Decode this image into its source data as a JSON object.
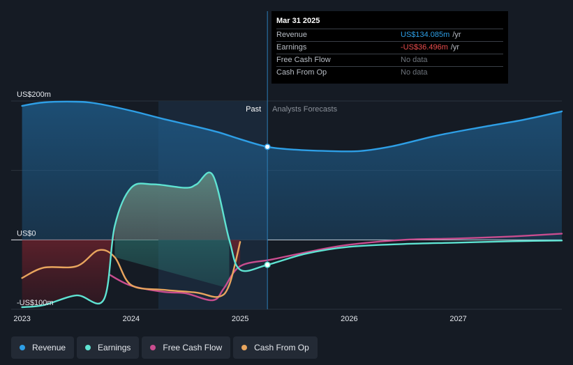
{
  "chart_data": {
    "type": "area",
    "y_axis": {
      "min": -100,
      "max": 200,
      "unit": "US$ millions",
      "labels": [
        "US$200m",
        "US$0",
        "-US$100m"
      ]
    },
    "x_axis": {
      "min": 2022.9,
      "max": 2027.95,
      "ticks": [
        "2023",
        "2024",
        "2025",
        "2026",
        "2027"
      ]
    },
    "divider": {
      "x": 2025.25,
      "past_label": "Past",
      "forecast_label": "Analysts Forecasts"
    },
    "series": [
      {
        "name": "Revenue",
        "color": "#2e9fe6",
        "points": [
          [
            2023.0,
            193
          ],
          [
            2023.2,
            198
          ],
          [
            2023.5,
            199
          ],
          [
            2023.7,
            196
          ],
          [
            2024.0,
            186
          ],
          [
            2024.3,
            174
          ],
          [
            2024.6,
            163
          ],
          [
            2024.8,
            155
          ],
          [
            2025.0,
            145
          ],
          [
            2025.25,
            134
          ],
          [
            2025.5,
            130
          ],
          [
            2025.8,
            128
          ],
          [
            2026.1,
            128
          ],
          [
            2026.4,
            135
          ],
          [
            2026.8,
            150
          ],
          [
            2027.2,
            162
          ],
          [
            2027.6,
            173
          ],
          [
            2027.95,
            185
          ]
        ]
      },
      {
        "name": "Earnings",
        "color": "#5fe3d2",
        "points": [
          [
            2023.0,
            -97
          ],
          [
            2023.2,
            -94
          ],
          [
            2023.5,
            -80
          ],
          [
            2023.75,
            -86
          ],
          [
            2023.85,
            20
          ],
          [
            2024.0,
            75
          ],
          [
            2024.2,
            80
          ],
          [
            2024.5,
            75
          ],
          [
            2024.6,
            80
          ],
          [
            2024.75,
            93
          ],
          [
            2024.9,
            0
          ],
          [
            2025.0,
            -43
          ],
          [
            2025.25,
            -36
          ],
          [
            2025.6,
            -20
          ],
          [
            2026.0,
            -10
          ],
          [
            2026.5,
            -6
          ],
          [
            2027.0,
            -4
          ],
          [
            2027.5,
            -2
          ],
          [
            2027.95,
            -1
          ]
        ]
      },
      {
        "name": "Free Cash Flow",
        "color": "#c94d8f",
        "points": [
          [
            2023.8,
            -50
          ],
          [
            2024.0,
            -66
          ],
          [
            2024.3,
            -75
          ],
          [
            2024.5,
            -77
          ],
          [
            2024.75,
            -87
          ],
          [
            2024.85,
            -70
          ],
          [
            2025.0,
            -38
          ],
          [
            2025.3,
            -28
          ],
          [
            2025.7,
            -15
          ],
          [
            2026.0,
            -7
          ],
          [
            2026.5,
            0
          ],
          [
            2027.0,
            2
          ],
          [
            2027.5,
            5
          ],
          [
            2027.95,
            9
          ]
        ]
      },
      {
        "name": "Cash From Op",
        "color": "#e8a55e",
        "points": [
          [
            2023.0,
            -55
          ],
          [
            2023.2,
            -40
          ],
          [
            2023.5,
            -38
          ],
          [
            2023.7,
            -15
          ],
          [
            2023.85,
            -25
          ],
          [
            2024.0,
            -65
          ],
          [
            2024.3,
            -72
          ],
          [
            2024.6,
            -76
          ],
          [
            2024.8,
            -82
          ],
          [
            2024.9,
            -65
          ],
          [
            2025.0,
            -3
          ]
        ]
      }
    ],
    "marker_date": "Mar 31 2025"
  },
  "tooltip": {
    "title": "Mar 31 2025",
    "rows": [
      {
        "name": "Revenue",
        "value": "US$134.085m",
        "unit": "/yr"
      },
      {
        "name": "Earnings",
        "value": "-US$36.496m",
        "unit": "/yr"
      },
      {
        "name": "Free Cash Flow",
        "value": "No data",
        "unit": ""
      },
      {
        "name": "Cash From Op",
        "value": "No data",
        "unit": ""
      }
    ]
  },
  "legend": [
    {
      "label": "Revenue",
      "color": "#2e9fe6"
    },
    {
      "label": "Earnings",
      "color": "#5fe3d2"
    },
    {
      "label": "Free Cash Flow",
      "color": "#c94d8f"
    },
    {
      "label": "Cash From Op",
      "color": "#e8a55e"
    }
  ]
}
